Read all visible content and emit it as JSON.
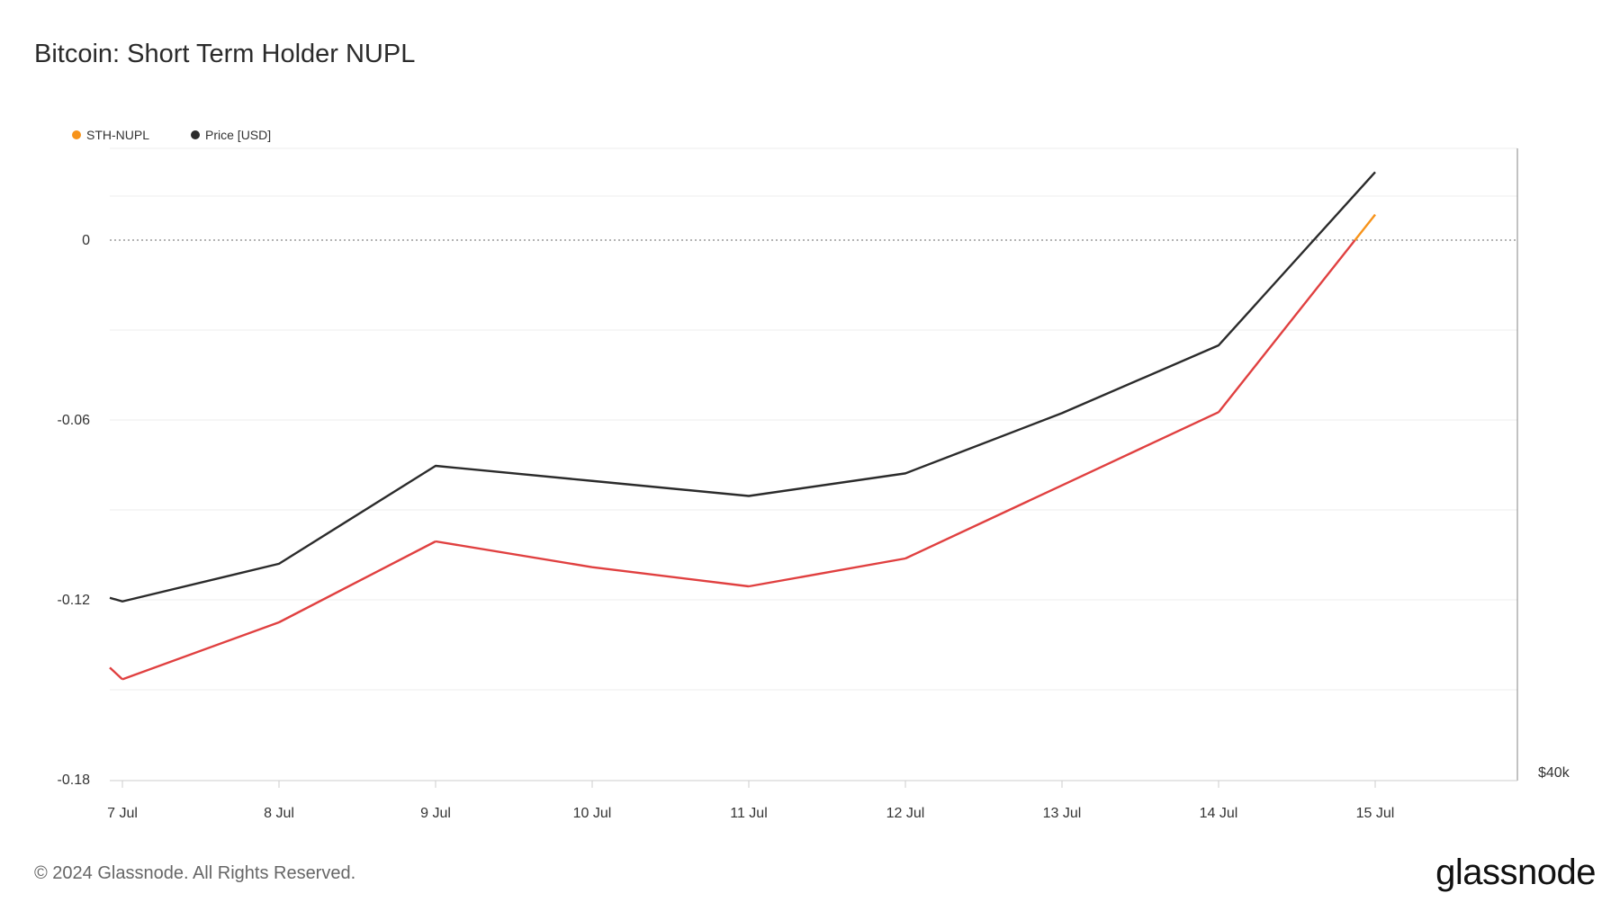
{
  "title": "Bitcoin: Short Term Holder NUPL",
  "footer": "© 2024 Glassnode. All Rights Reserved.",
  "brand": "glassnode",
  "colors": {
    "nupl_positive": "#f7931a",
    "nupl_negative": "#e04040",
    "price": "#2b2b2b",
    "grid": "#ececec",
    "zero_line": "#888888"
  },
  "chart_data": {
    "type": "line",
    "title": "Bitcoin: Short Term Holder NUPL",
    "x": [
      "7 Jul",
      "8 Jul",
      "9 Jul",
      "10 Jul",
      "11 Jul",
      "12 Jul",
      "13 Jul",
      "14 Jul",
      "15 Jul"
    ],
    "x_tick_labels": [
      "7 Jul",
      "8 Jul",
      "9 Jul",
      "10 Jul",
      "11 Jul",
      "12 Jul",
      "13 Jul",
      "14 Jul",
      "15 Jul"
    ],
    "y_left_ticks": [
      0,
      -0.06,
      -0.12,
      -0.18
    ],
    "y_left_tick_labels": [
      "0",
      "-0.06",
      "-0.12",
      "-0.18"
    ],
    "y_right_tick_labels": [
      "$40k"
    ],
    "ylim_left": [
      -0.183,
      0.03
    ],
    "legend_position": "top-left",
    "grid": true,
    "series": [
      {
        "name": "STH-NUPL",
        "axis": "left",
        "values": [
          -0.1465,
          -0.1275,
          -0.1005,
          -0.1091,
          -0.1155,
          -0.1062,
          -0.0818,
          -0.0574,
          0.0085
        ]
      },
      {
        "name": "Price [USD]",
        "axis": "right",
        "values": [
          56800,
          57300,
          58600,
          58400,
          58200,
          58500,
          59300,
          60200,
          62500
        ]
      }
    ]
  }
}
